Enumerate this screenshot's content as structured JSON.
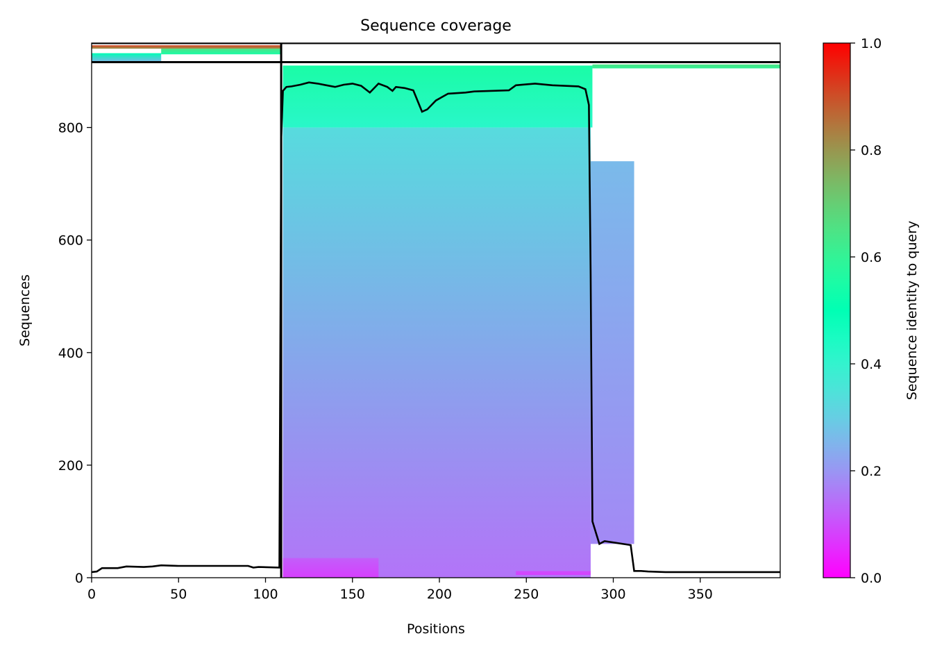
{
  "chart_data": {
    "type": "heatmap",
    "title": "Sequence coverage",
    "xlabel": "Positions",
    "ylabel": "Sequences",
    "xlim": [
      0,
      396
    ],
    "ylim": [
      0,
      950
    ],
    "x_ticks": [
      0,
      50,
      100,
      150,
      200,
      250,
      300,
      350
    ],
    "y_ticks": [
      0,
      200,
      400,
      600,
      800
    ],
    "colorbar": {
      "label": "Sequence identity to query",
      "range": [
        0,
        1
      ],
      "ticks": [
        "0.0",
        "0.2",
        "0.4",
        "0.6",
        "0.8",
        "1.0"
      ],
      "colormap": "rainbow"
    },
    "segment_boundaries": {
      "x": 109,
      "y": [
        916,
        950
      ]
    },
    "coverage_blocks": [
      {
        "x0": 110,
        "x1": 287,
        "y0": 0,
        "y1": 800,
        "identity_bottom": 0.15,
        "identity_top": 0.33
      },
      {
        "x0": 110,
        "x1": 288,
        "y0": 800,
        "y1": 910,
        "identity_bottom": 0.42,
        "identity_top": 0.55
      },
      {
        "x0": 288,
        "x1": 396,
        "y0": 905,
        "y1": 912,
        "identity_bottom": 0.6,
        "identity_top": 0.65
      },
      {
        "x0": 0,
        "x1": 40,
        "y0": 916,
        "y1": 932,
        "identity_bottom": 0.25,
        "identity_top": 0.5
      },
      {
        "x0": 40,
        "x1": 109,
        "y0": 930,
        "y1": 940,
        "identity_bottom": 0.55,
        "identity_top": 0.65
      },
      {
        "x0": 0,
        "x1": 109,
        "y0": 940,
        "y1": 946,
        "identity_bottom": 0.8,
        "identity_top": 0.92
      },
      {
        "x0": 110,
        "x1": 165,
        "y0": 0,
        "y1": 35,
        "identity_bottom": 0.08,
        "identity_top": 0.12
      },
      {
        "x0": 244,
        "x1": 287,
        "y0": 5,
        "y1": 12,
        "identity_bottom": 0.08,
        "identity_top": 0.1
      },
      {
        "x0": 287,
        "x1": 312,
        "y0": 60,
        "y1": 740,
        "identity_bottom": 0.18,
        "identity_top": 0.26
      }
    ],
    "coverage_line": {
      "x": [
        0,
        3,
        6,
        15,
        20,
        30,
        35,
        40,
        50,
        70,
        90,
        93,
        96,
        108,
        109,
        110,
        112,
        115,
        120,
        125,
        130,
        135,
        140,
        145,
        150,
        155,
        160,
        165,
        170,
        173,
        175,
        180,
        185,
        190,
        193,
        198,
        205,
        215,
        220,
        240,
        244,
        255,
        265,
        280,
        284,
        286,
        287,
        288,
        290,
        292,
        295,
        310,
        312,
        316,
        320,
        330,
        396
      ],
      "y": [
        10,
        11,
        17,
        17,
        20,
        19,
        20,
        22,
        21,
        21,
        21,
        18,
        19,
        18,
        780,
        865,
        872,
        873,
        876,
        880,
        878,
        875,
        872,
        876,
        878,
        874,
        862,
        878,
        872,
        865,
        872,
        870,
        866,
        828,
        832,
        848,
        860,
        862,
        864,
        866,
        875,
        878,
        875,
        873,
        868,
        840,
        540,
        100,
        80,
        60,
        65,
        58,
        12,
        12,
        11,
        10,
        10
      ]
    }
  }
}
